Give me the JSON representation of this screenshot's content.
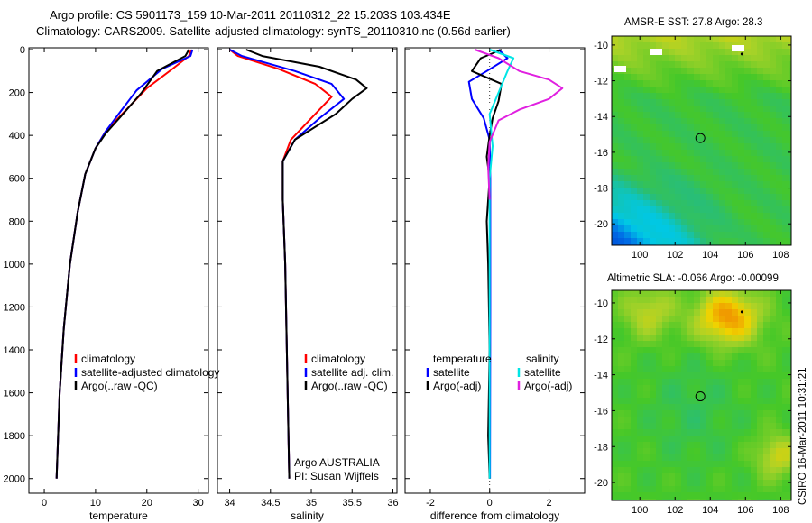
{
  "header": {
    "line1": "Argo profile: CS 5901173_159 10-Mar-2011 20110312_22 15.203S 103.434E",
    "line2": "Climatology: CARS2009. Satellite-adjusted climatology: synTS_20110310.nc (0.56d earlier)"
  },
  "colors": {
    "climatology": "#ff0000",
    "satellite": "#0000ff",
    "argo": "#000000",
    "sal_satellite": "#00e5e5",
    "sal_argo": "#e020e0"
  },
  "chart_data": [
    {
      "type": "line",
      "xlabel": "temperature",
      "xticks": [
        0,
        10,
        20,
        30
      ],
      "xlim": [
        -3,
        32
      ],
      "ylim": [
        0,
        2060
      ],
      "yticks": [
        0,
        200,
        400,
        600,
        800,
        1000,
        1200,
        1400,
        1600,
        1800,
        2000
      ],
      "series": [
        {
          "name": "climatology",
          "color": "#ff0000",
          "x": [
            28.6,
            28.2,
            25,
            20,
            16,
            12,
            10,
            8,
            6.5,
            5,
            3.8,
            3.0,
            2.4
          ],
          "y": [
            0,
            30,
            90,
            180,
            280,
            380,
            460,
            580,
            760,
            1000,
            1300,
            1600,
            2000
          ]
        },
        {
          "name": "satellite-adjusted climatology",
          "color": "#0000ff",
          "x": [
            28.9,
            28.5,
            23,
            18,
            14.5,
            12,
            10,
            8,
            6.5,
            5,
            3.8,
            3.0,
            2.4
          ],
          "y": [
            0,
            30,
            90,
            190,
            300,
            380,
            460,
            580,
            760,
            1000,
            1300,
            1600,
            2000
          ]
        },
        {
          "name": "Argo(..raw -QC)",
          "color": "#000000",
          "x": [
            28.2,
            27.5,
            22,
            19,
            15,
            12,
            10,
            8,
            6.5,
            5,
            3.8,
            3.0,
            2.4
          ],
          "y": [
            0,
            30,
            100,
            200,
            310,
            390,
            460,
            580,
            760,
            1000,
            1300,
            1600,
            2000
          ]
        }
      ],
      "legend": [
        "climatology",
        "satellite-adjusted climatology",
        "Argo(..raw -QC)"
      ]
    },
    {
      "type": "line",
      "xlabel": "salinity",
      "xticks": [
        34,
        34.5,
        35,
        35.5,
        36
      ],
      "xticklabels": [
        "34",
        "34.5",
        "35",
        "35.5",
        "36"
      ],
      "xlim": [
        33.85,
        36.05
      ],
      "ylim": [
        0,
        2060
      ],
      "series": [
        {
          "name": "climatology",
          "color": "#ff0000",
          "x": [
            34.0,
            34.1,
            34.6,
            35.05,
            35.25,
            35.0,
            34.75,
            34.65,
            34.65,
            34.68,
            34.7,
            34.72,
            34.73
          ],
          "y": [
            0,
            30,
            90,
            160,
            220,
            320,
            420,
            520,
            700,
            1000,
            1400,
            1800,
            2000
          ]
        },
        {
          "name": "satellite adj. clim.",
          "color": "#0000ff",
          "x": [
            34.0,
            34.15,
            34.8,
            35.25,
            35.4,
            35.1,
            34.8,
            34.65,
            34.65,
            34.68,
            34.7,
            34.72,
            34.73
          ],
          "y": [
            0,
            30,
            100,
            160,
            230,
            320,
            420,
            520,
            700,
            1000,
            1400,
            1800,
            2000
          ]
        },
        {
          "name": "Argo(..raw -QC)",
          "color": "#000000",
          "x": [
            34.2,
            34.4,
            35.1,
            35.55,
            35.68,
            35.5,
            35.3,
            35.05,
            34.8,
            34.65,
            34.65,
            34.68,
            34.7,
            34.72,
            34.73
          ],
          "y": [
            0,
            30,
            80,
            140,
            180,
            230,
            300,
            360,
            420,
            520,
            700,
            1000,
            1400,
            1800,
            2000
          ]
        }
      ],
      "legend": [
        "climatology",
        "satellite adj. clim.",
        "Argo(..raw -QC)"
      ],
      "annotation": [
        "Argo AUSTRALIA",
        "PI: Susan Wijffels"
      ]
    },
    {
      "type": "line",
      "xlabel": "difference from climatology",
      "xticks": [
        -2,
        0,
        2
      ],
      "xlim": [
        -2.85,
        3.2
      ],
      "ylim": [
        0,
        2060
      ],
      "series": [
        {
          "name": "temperature satellite",
          "color": "#0000ff",
          "x": [
            0.3,
            0.6,
            -0.1,
            -0.7,
            -0.6,
            -0.2,
            0.0,
            0.02,
            0.02,
            0.01
          ],
          "y": [
            0,
            40,
            100,
            150,
            230,
            320,
            420,
            600,
            1200,
            2000
          ]
        },
        {
          "name": "temperature Argo(-adj)",
          "color": "#000000",
          "x": [
            0.4,
            -0.3,
            -0.6,
            0.4,
            0.3,
            0.1,
            0.0,
            -0.1,
            0.0,
            -0.1,
            -0.05,
            0.0,
            -0.05,
            0.0
          ],
          "y": [
            0,
            40,
            100,
            160,
            240,
            320,
            400,
            500,
            600,
            800,
            1000,
            1400,
            1800,
            2000
          ]
        },
        {
          "name": "salinity satellite",
          "color": "#00e5e5",
          "x": [
            0.0,
            0.8,
            0.6,
            0.3,
            0.0,
            0.1,
            0.0,
            0.0,
            0.0
          ],
          "y": [
            0,
            40,
            100,
            200,
            300,
            450,
            600,
            1200,
            2000
          ]
        },
        {
          "name": "salinity Argo(-adj)",
          "color": "#e020e0",
          "x": [
            -0.5,
            0.3,
            1.0,
            2.0,
            2.45,
            2.0,
            1.0,
            0.3,
            0.0,
            -0.05,
            0.0
          ],
          "y": [
            0,
            40,
            100,
            140,
            180,
            230,
            280,
            330,
            430,
            550,
            700
          ]
        }
      ],
      "legend_headers": [
        "temperature",
        "salinity"
      ],
      "legend": [
        "satellite",
        "Argo(-adj)",
        "satellite",
        "Argo(-adj)"
      ]
    },
    {
      "type": "heatmap",
      "title": "AMSR-E SST: 27.8 Argo: 28.3",
      "xticks": [
        100,
        102,
        104,
        106,
        108
      ],
      "yticks": [
        -10,
        -12,
        -14,
        -16,
        -18,
        -20
      ],
      "xlim": [
        98.4,
        108.6
      ],
      "ylim": [
        -21.2,
        -9.5
      ],
      "marker_circle": [
        103.434,
        -15.203
      ]
    },
    {
      "type": "heatmap",
      "title": "Altimetric SLA: -0.066 Argo: -0.00099",
      "xticks": [
        100,
        102,
        104,
        106,
        108
      ],
      "yticks": [
        -10,
        -12,
        -14,
        -16,
        -18,
        -20
      ],
      "xlim": [
        98.4,
        108.6
      ],
      "ylim": [
        -21.0,
        -9.3
      ],
      "marker_circle": [
        103.434,
        -15.203
      ]
    }
  ],
  "footer_stamp": "CSIRO 16-Mar-2011 10:31:21"
}
